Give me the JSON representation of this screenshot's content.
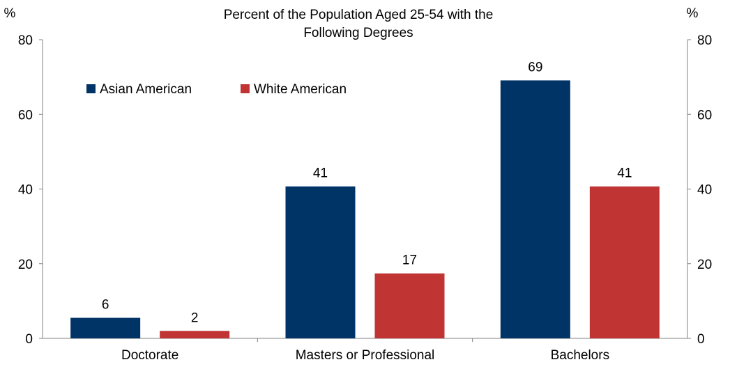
{
  "chart_data": {
    "type": "bar",
    "title": "Percent of the Population Aged 25-54 with the Following Degrees",
    "title_lines": [
      "Percent of the Population Aged 25-54 with the",
      "Following Degrees"
    ],
    "ylabel_left": "%",
    "ylabel_right": "%",
    "ylim": [
      0,
      80
    ],
    "yticks": [
      0,
      20,
      40,
      60,
      80
    ],
    "grid": false,
    "legend_position": "top-left",
    "categories": [
      "Doctorate",
      "Masters or Professional",
      "Bachelors"
    ],
    "series": [
      {
        "name": "Asian American",
        "color": "#003366",
        "values": [
          5.5,
          40.7,
          69.1
        ],
        "labels": [
          "6",
          "41",
          "69"
        ]
      },
      {
        "name": "White American",
        "color": "#c03434",
        "values": [
          2.0,
          17.4,
          40.7
        ],
        "labels": [
          "2",
          "17",
          "41"
        ]
      }
    ]
  }
}
